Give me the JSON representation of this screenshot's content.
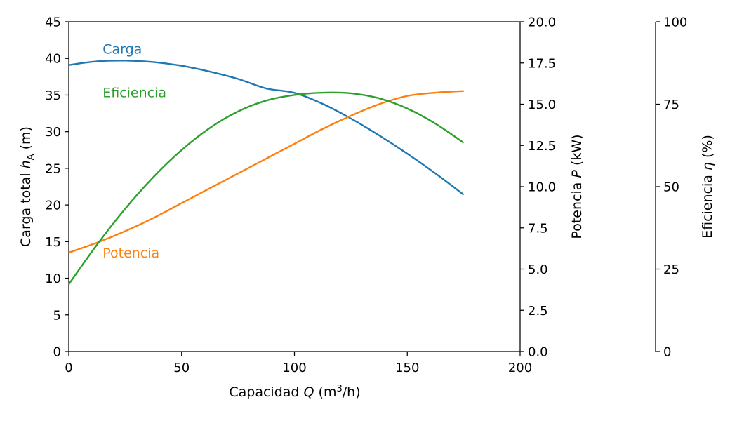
{
  "chart_data": {
    "type": "line",
    "x": {
      "label_prefix": "Capacidad ",
      "label_var": "Q",
      "label_unit_pre": " (m",
      "label_unit_sup": "3",
      "label_unit_post": "/h)",
      "lim": [
        0,
        200
      ],
      "ticks": [
        0,
        50,
        100,
        150,
        200
      ]
    },
    "axes": {
      "left": {
        "label_prefix": "Carga total ",
        "label_var": "h",
        "label_sub": "A",
        "label_unit": " (m)",
        "lim": [
          0,
          45
        ],
        "ticks": [
          "0",
          "5",
          "10",
          "15",
          "20",
          "25",
          "30",
          "35",
          "40",
          "45"
        ]
      },
      "right1": {
        "label_prefix": "Potencia ",
        "label_var": "P",
        "label_unit": " (kW)",
        "lim": [
          0,
          20
        ],
        "ticks": [
          "0.0",
          "2.5",
          "5.0",
          "7.5",
          "10.0",
          "12.5",
          "15.0",
          "17.5",
          "20.0"
        ]
      },
      "right2": {
        "label_prefix": "Eficiencia ",
        "label_var": "η",
        "label_unit": " (%)",
        "lim": [
          0,
          100
        ],
        "ticks": [
          "0",
          "25",
          "50",
          "75",
          "100"
        ]
      }
    },
    "series": [
      {
        "name": "Carga",
        "axis": "left",
        "color": "#1f77b4",
        "x": [
          0,
          12.5,
          25,
          37.5,
          50,
          62.5,
          75,
          87.5,
          100,
          112.5,
          125,
          137.5,
          150,
          162.5,
          175
        ],
        "y": [
          39.1,
          39.6,
          39.7,
          39.5,
          39.0,
          38.2,
          37.2,
          35.9,
          35.3,
          33.8,
          31.8,
          29.5,
          27.0,
          24.3,
          21.4
        ]
      },
      {
        "name": "Potencia",
        "axis": "right1",
        "color": "#ff7f0e",
        "x": [
          0,
          12.5,
          25,
          37.5,
          50,
          62.5,
          75,
          87.5,
          100,
          112.5,
          125,
          137.5,
          150,
          162.5,
          175
        ],
        "y": [
          6.0,
          6.6,
          7.3,
          8.1,
          9.0,
          9.9,
          10.8,
          11.7,
          12.6,
          13.5,
          14.3,
          15.0,
          15.5,
          15.7,
          15.8
        ]
      },
      {
        "name": "Eficiencia",
        "axis": "right2",
        "color": "#2ca02c",
        "x": [
          0,
          12.5,
          25,
          37.5,
          50,
          62.5,
          75,
          87.5,
          100,
          112.5,
          125,
          137.5,
          150,
          162.5,
          175
        ],
        "y": [
          20.4,
          32.4,
          43.3,
          52.9,
          61.1,
          67.8,
          72.8,
          76.1,
          77.8,
          78.5,
          78.3,
          76.8,
          73.7,
          69.1,
          63.3
        ]
      }
    ],
    "annotations": [
      {
        "text": "Carga",
        "color": "#1f77b4",
        "x": 15,
        "y": 41.3
      },
      {
        "text": "Eficiencia",
        "color": "#2ca02c",
        "x": 15,
        "y": 35.4
      },
      {
        "text": "Potencia",
        "color": "#ff7f0e",
        "x": 15,
        "y": 13.5
      }
    ]
  }
}
